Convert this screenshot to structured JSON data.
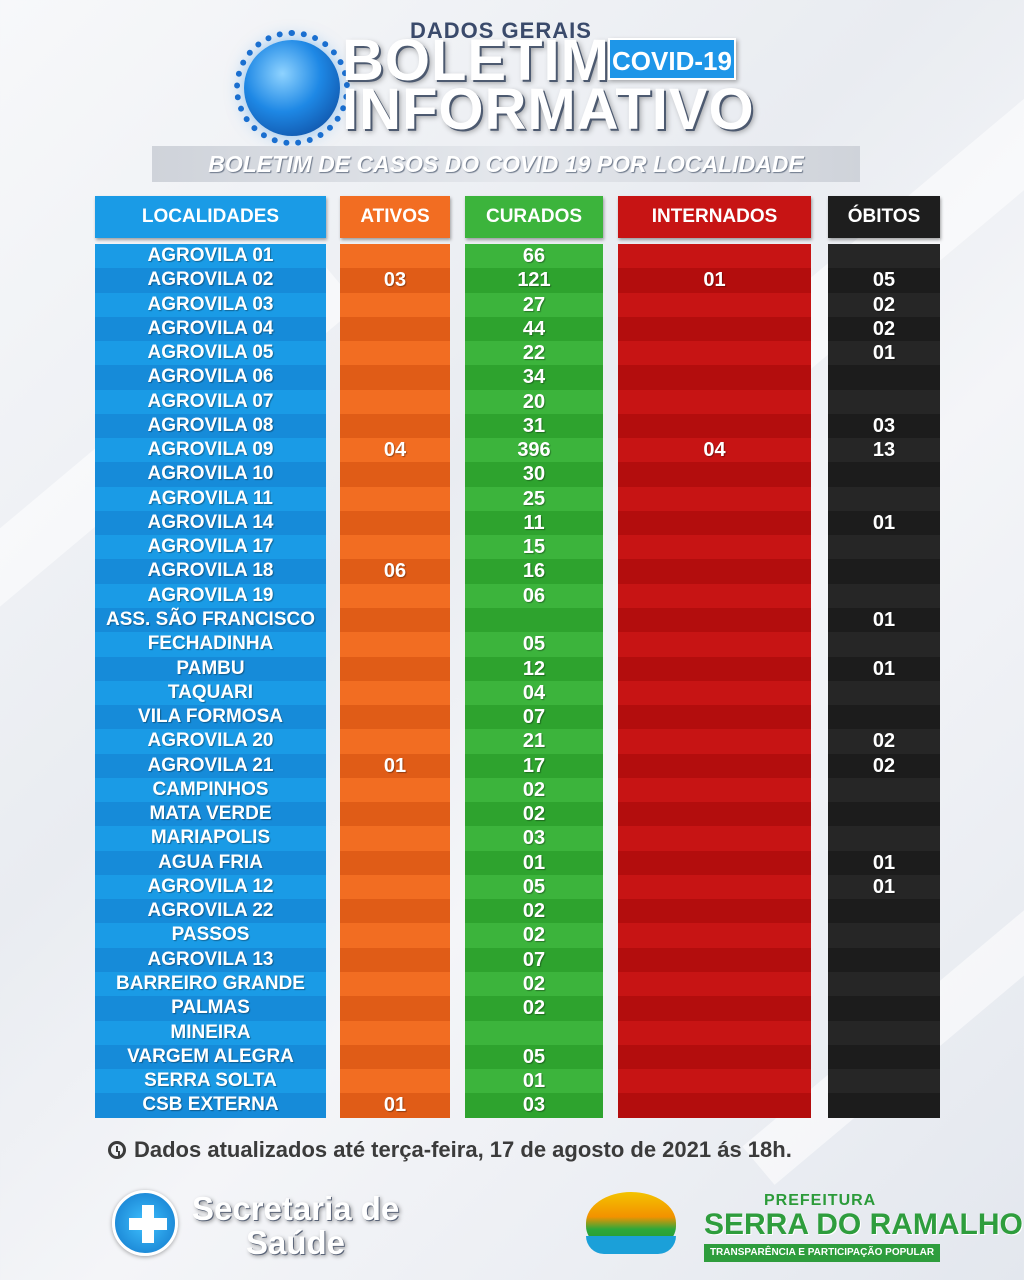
{
  "header": {
    "kicker": "DADOS GERAIS",
    "title_line1": "BOLETIM",
    "title_line2": "INFORMATIVO",
    "badge": "COVID-19",
    "subtitle": "BOLETIM DE CASOS DO COVID 19 POR LOCALIDADE"
  },
  "columns": {
    "localidades": "LOCALIDADES",
    "ativos": "ATIVOS",
    "curados": "CURADOS",
    "internados": "INTERNADOS",
    "obitos": "ÓBITOS"
  },
  "colors": {
    "localidades": "#1a9be6",
    "ativos": "#f26d22",
    "curados": "#3cb43c",
    "internados": "#c71414",
    "obitos": "#262626"
  },
  "rows": [
    {
      "loc": "AGROVILA 01",
      "ativos": "",
      "curados": "66",
      "internados": "",
      "obitos": ""
    },
    {
      "loc": "AGROVILA 02",
      "ativos": "03",
      "curados": "121",
      "internados": "01",
      "obitos": "05"
    },
    {
      "loc": "AGROVILA 03",
      "ativos": "",
      "curados": "27",
      "internados": "",
      "obitos": "02"
    },
    {
      "loc": "AGROVILA 04",
      "ativos": "",
      "curados": "44",
      "internados": "",
      "obitos": "02"
    },
    {
      "loc": "AGROVILA 05",
      "ativos": "",
      "curados": "22",
      "internados": "",
      "obitos": "01"
    },
    {
      "loc": "AGROVILA 06",
      "ativos": "",
      "curados": "34",
      "internados": "",
      "obitos": ""
    },
    {
      "loc": "AGROVILA 07",
      "ativos": "",
      "curados": "20",
      "internados": "",
      "obitos": ""
    },
    {
      "loc": "AGROVILA 08",
      "ativos": "",
      "curados": "31",
      "internados": "",
      "obitos": "03"
    },
    {
      "loc": "AGROVILA 09",
      "ativos": "04",
      "curados": "396",
      "internados": "04",
      "obitos": "13"
    },
    {
      "loc": "AGROVILA 10",
      "ativos": "",
      "curados": "30",
      "internados": "",
      "obitos": ""
    },
    {
      "loc": "AGROVILA 11",
      "ativos": "",
      "curados": "25",
      "internados": "",
      "obitos": ""
    },
    {
      "loc": "AGROVILA 14",
      "ativos": "",
      "curados": "11",
      "internados": "",
      "obitos": "01"
    },
    {
      "loc": "AGROVILA 17",
      "ativos": "",
      "curados": "15",
      "internados": "",
      "obitos": ""
    },
    {
      "loc": "AGROVILA 18",
      "ativos": "06",
      "curados": "16",
      "internados": "",
      "obitos": ""
    },
    {
      "loc": "AGROVILA 19",
      "ativos": "",
      "curados": "06",
      "internados": "",
      "obitos": ""
    },
    {
      "loc": "ASS. SÃO FRANCISCO",
      "ativos": "",
      "curados": "",
      "internados": "",
      "obitos": "01"
    },
    {
      "loc": "FECHADINHA",
      "ativos": "",
      "curados": "05",
      "internados": "",
      "obitos": ""
    },
    {
      "loc": "PAMBU",
      "ativos": "",
      "curados": "12",
      "internados": "",
      "obitos": "01"
    },
    {
      "loc": "TAQUARI",
      "ativos": "",
      "curados": "04",
      "internados": "",
      "obitos": ""
    },
    {
      "loc": "VILA FORMOSA",
      "ativos": "",
      "curados": "07",
      "internados": "",
      "obitos": ""
    },
    {
      "loc": "AGROVILA 20",
      "ativos": "",
      "curados": "21",
      "internados": "",
      "obitos": "02"
    },
    {
      "loc": "AGROVILA 21",
      "ativos": "01",
      "curados": "17",
      "internados": "",
      "obitos": "02"
    },
    {
      "loc": "CAMPINHOS",
      "ativos": "",
      "curados": "02",
      "internados": "",
      "obitos": ""
    },
    {
      "loc": "MATA VERDE",
      "ativos": "",
      "curados": "02",
      "internados": "",
      "obitos": ""
    },
    {
      "loc": "MARIAPOLIS",
      "ativos": "",
      "curados": "03",
      "internados": "",
      "obitos": ""
    },
    {
      "loc": "AGUA FRIA",
      "ativos": "",
      "curados": "01",
      "internados": "",
      "obitos": "01"
    },
    {
      "loc": "AGROVILA 12",
      "ativos": "",
      "curados": "05",
      "internados": "",
      "obitos": "01"
    },
    {
      "loc": "AGROVILA 22",
      "ativos": "",
      "curados": "02",
      "internados": "",
      "obitos": ""
    },
    {
      "loc": "PASSOS",
      "ativos": "",
      "curados": "02",
      "internados": "",
      "obitos": ""
    },
    {
      "loc": "AGROVILA 13",
      "ativos": "",
      "curados": "07",
      "internados": "",
      "obitos": ""
    },
    {
      "loc": "BARREIRO GRANDE",
      "ativos": "",
      "curados": "02",
      "internados": "",
      "obitos": ""
    },
    {
      "loc": "PALMAS",
      "ativos": "",
      "curados": "02",
      "internados": "",
      "obitos": ""
    },
    {
      "loc": "MINEIRA",
      "ativos": "",
      "curados": "",
      "internados": "",
      "obitos": ""
    },
    {
      "loc": "VARGEM ALEGRA",
      "ativos": "",
      "curados": "05",
      "internados": "",
      "obitos": ""
    },
    {
      "loc": "SERRA SOLTA",
      "ativos": "",
      "curados": "01",
      "internados": "",
      "obitos": ""
    },
    {
      "loc": "CSB EXTERNA",
      "ativos": "01",
      "curados": "03",
      "internados": "",
      "obitos": ""
    }
  ],
  "footer": {
    "clock_icon": "clock-icon",
    "updated": "Dados atualizados até terça-feira, 17 de agosto de 2021 ás 18h.",
    "secretaria_line1": "Secretaria de",
    "secretaria_line2": "Saúde",
    "prefeitura_small": "PREFEITURA",
    "prefeitura_name": "SERRA DO RAMALHO",
    "prefeitura_tagline": "TRANSPARÊNCIA E PARTICIPAÇÃO POPULAR"
  }
}
